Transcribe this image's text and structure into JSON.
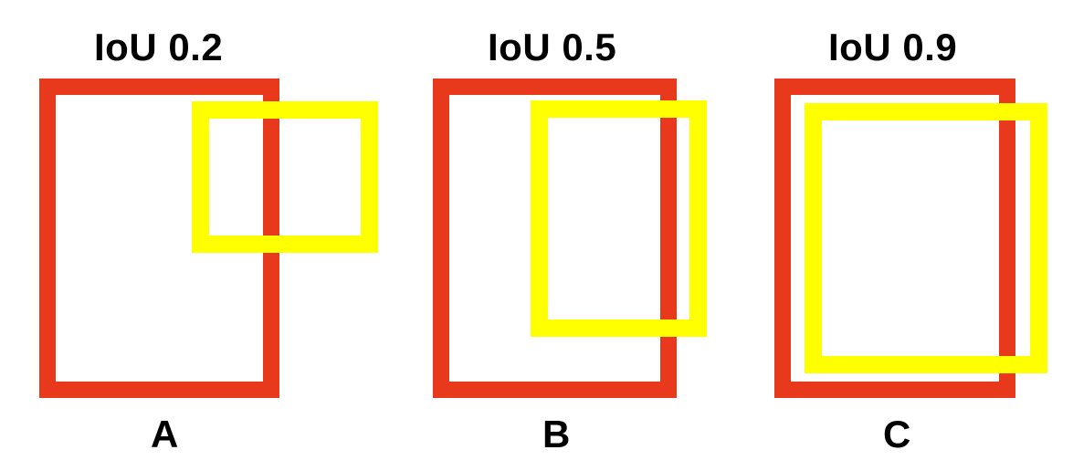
{
  "colors": {
    "red_box": "#e8391d",
    "yellow_box": "#ffff00",
    "text": "#000000",
    "background": "#ffffff"
  },
  "panels": [
    {
      "title": "IoU 0.2",
      "label": "A"
    },
    {
      "title": "IoU 0.5",
      "label": "B"
    },
    {
      "title": "IoU 0.9",
      "label": "C"
    }
  ]
}
